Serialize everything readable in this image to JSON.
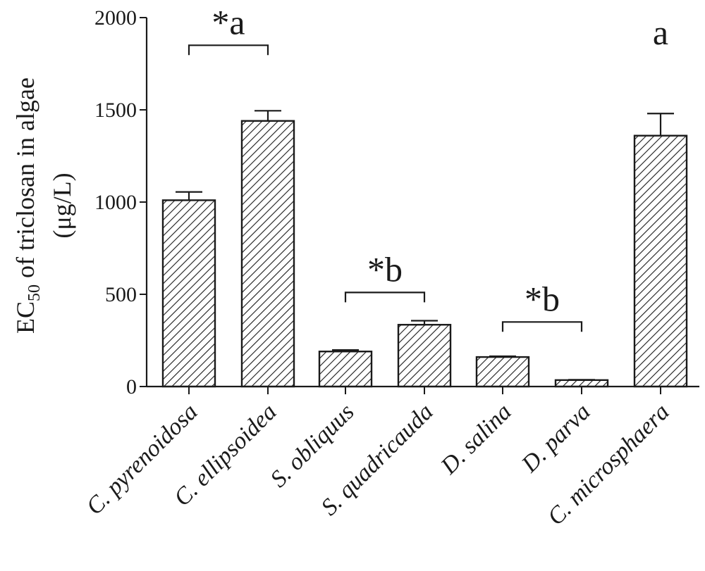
{
  "chart_data": {
    "type": "bar",
    "title": "",
    "ylabel": {
      "line1_main": "EC",
      "line1_sub": "50",
      "line1_rest": " of triclosan in algae",
      "line2": "(μg/L)"
    },
    "xlabel": "",
    "ylim": [
      0,
      2000
    ],
    "yticks": [
      0,
      500,
      1000,
      1500,
      2000
    ],
    "categories": [
      "C. pyrenoidosa",
      "C. ellipsoidea",
      "S. obliquus",
      "S. quadricauda",
      "D. salina",
      "D. parva",
      "C. microsphaera"
    ],
    "values": [
      1010,
      1440,
      190,
      335,
      160,
      35,
      1360
    ],
    "errors": [
      45,
      55,
      8,
      22,
      4,
      2,
      120
    ],
    "bar_fill": "hatched",
    "colors": {
      "stroke": "#1a1a1a",
      "background": "#ffffff"
    },
    "annotations": [
      {
        "label": "*a",
        "from": 0,
        "to": 1,
        "bracket": true,
        "level": 1850
      },
      {
        "label": "*b",
        "from": 2,
        "to": 3,
        "bracket": true,
        "level": 510
      },
      {
        "label": "*b",
        "from": 4,
        "to": 5,
        "bracket": true,
        "level": 350
      },
      {
        "label": "a",
        "from": 6,
        "to": 6,
        "bracket": false,
        "level": 1900
      }
    ]
  }
}
